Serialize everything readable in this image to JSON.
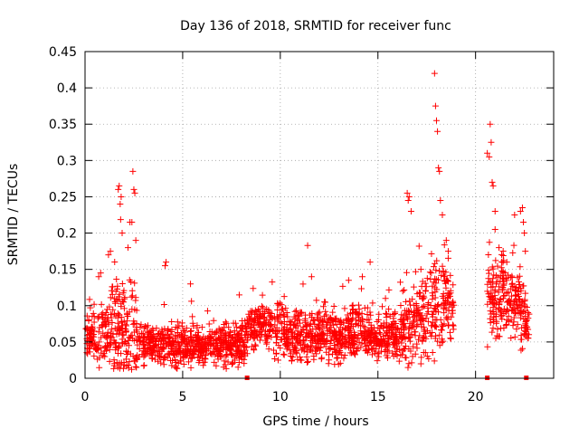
{
  "chart_data": {
    "type": "scatter",
    "title": "Day 136 of 2018, SRMTID for receiver func",
    "xlabel": "GPS time / hours",
    "ylabel": "SRMTID / TECUs",
    "xlim": [
      0,
      24
    ],
    "ylim": [
      0,
      0.45
    ],
    "xticks": [
      0,
      5,
      10,
      15,
      20
    ],
    "xtick_labels": [
      "0",
      "5",
      "10",
      "15",
      "20"
    ],
    "yticks": [
      0,
      0.05,
      0.1,
      0.15,
      0.2,
      0.25,
      0.3,
      0.35,
      0.4,
      0.45
    ],
    "ytick_labels": [
      "0",
      "0.05",
      "0.1",
      "0.15",
      "0.2",
      "0.25",
      "0.3",
      "0.35",
      "0.4",
      "0.45"
    ],
    "grid": true,
    "marker": "plus",
    "color": "#ff0000",
    "profile": [
      [
        0.0,
        0.05,
        0.03
      ],
      [
        0.6,
        0.055,
        0.035
      ],
      [
        1.2,
        0.06,
        0.045
      ],
      [
        1.6,
        0.075,
        0.09
      ],
      [
        2.0,
        0.065,
        0.07
      ],
      [
        2.5,
        0.06,
        0.08
      ],
      [
        2.9,
        0.045,
        0.025
      ],
      [
        4.0,
        0.045,
        0.03
      ],
      [
        5.0,
        0.045,
        0.03
      ],
      [
        6.0,
        0.045,
        0.03
      ],
      [
        7.0,
        0.045,
        0.03
      ],
      [
        8.0,
        0.045,
        0.03
      ],
      [
        8.5,
        0.07,
        0.04
      ],
      [
        9.0,
        0.075,
        0.03
      ],
      [
        10.0,
        0.065,
        0.04
      ],
      [
        11.0,
        0.06,
        0.04
      ],
      [
        12.0,
        0.055,
        0.035
      ],
      [
        13.0,
        0.055,
        0.04
      ],
      [
        14.0,
        0.065,
        0.04
      ],
      [
        15.0,
        0.055,
        0.03
      ],
      [
        16.0,
        0.06,
        0.035
      ],
      [
        16.8,
        0.075,
        0.06
      ],
      [
        17.5,
        0.08,
        0.06
      ],
      [
        18.2,
        0.1,
        0.07
      ],
      [
        18.8,
        0.1,
        0.05
      ],
      [
        20.7,
        0.1,
        0.06
      ],
      [
        21.5,
        0.12,
        0.06
      ],
      [
        22.2,
        0.1,
        0.07
      ],
      [
        22.7,
        0.07,
        0.02
      ]
    ],
    "gaps": [
      [
        18.9,
        20.6
      ],
      [
        22.75,
        24
      ]
    ],
    "outliers": [
      [
        0.7,
        0.14
      ],
      [
        0.8,
        0.145
      ],
      [
        1.2,
        0.17
      ],
      [
        1.3,
        0.175
      ],
      [
        1.7,
        0.26
      ],
      [
        1.75,
        0.265
      ],
      [
        1.8,
        0.24
      ],
      [
        1.85,
        0.25
      ],
      [
        1.9,
        0.2
      ],
      [
        2.2,
        0.18
      ],
      [
        2.3,
        0.215
      ],
      [
        2.4,
        0.215
      ],
      [
        2.45,
        0.285
      ],
      [
        2.5,
        0.26
      ],
      [
        2.55,
        0.255
      ],
      [
        2.6,
        0.19
      ],
      [
        4.1,
        0.155
      ],
      [
        4.15,
        0.16
      ],
      [
        5.4,
        0.13
      ],
      [
        11.4,
        0.183
      ],
      [
        11.6,
        0.14
      ],
      [
        13.5,
        0.135
      ],
      [
        14.2,
        0.14
      ],
      [
        14.6,
        0.16
      ],
      [
        16.5,
        0.255
      ],
      [
        16.55,
        0.245
      ],
      [
        16.6,
        0.25
      ],
      [
        16.7,
        0.23
      ],
      [
        17.2,
        0.15
      ],
      [
        17.9,
        0.42
      ],
      [
        17.95,
        0.375
      ],
      [
        18.0,
        0.355
      ],
      [
        18.05,
        0.34
      ],
      [
        18.1,
        0.29
      ],
      [
        18.15,
        0.285
      ],
      [
        18.2,
        0.245
      ],
      [
        18.3,
        0.225
      ],
      [
        18.5,
        0.19
      ],
      [
        18.6,
        0.175
      ],
      [
        20.6,
        0.31
      ],
      [
        20.7,
        0.305
      ],
      [
        20.75,
        0.35
      ],
      [
        20.8,
        0.325
      ],
      [
        20.85,
        0.27
      ],
      [
        20.9,
        0.265
      ],
      [
        21.0,
        0.23
      ],
      [
        21.0,
        0.205
      ],
      [
        21.2,
        0.18
      ],
      [
        21.6,
        0.16
      ],
      [
        22.0,
        0.225
      ],
      [
        22.3,
        0.23
      ],
      [
        22.4,
        0.235
      ],
      [
        22.45,
        0.215
      ],
      [
        22.5,
        0.2
      ],
      [
        22.55,
        0.175
      ]
    ],
    "zero_markers": [
      8.3,
      20.6,
      22.6
    ],
    "n_points": 2300,
    "seed": 136
  }
}
